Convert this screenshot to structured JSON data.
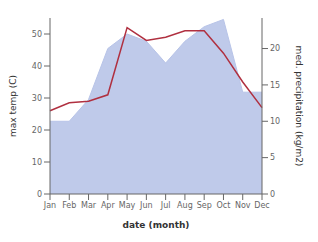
{
  "chart_data": {
    "type": "line",
    "x_label": "date (month)",
    "y_label": "max temp (C)",
    "y2_label": "med. precipitation (kg/m2)",
    "categories": [
      "Jan",
      "Feb",
      "Mar",
      "Apr",
      "May",
      "Jun",
      "Jul",
      "Aug",
      "Sep",
      "Oct",
      "Nov",
      "Dec"
    ],
    "series": [
      {
        "type": "area",
        "color": "#b8c4e8",
        "axis": "y2",
        "values": [
          10,
          10,
          13,
          20,
          22,
          21,
          18,
          21,
          23,
          24,
          14,
          14
        ]
      },
      {
        "type": "line",
        "color": "#b03040",
        "values": [
          26,
          28.5,
          29,
          31,
          52,
          48,
          49,
          51,
          51,
          44,
          35,
          27
        ]
      }
    ],
    "ylim": [
      0,
      55
    ],
    "yticks": [
      0,
      10,
      20,
      30,
      40,
      50
    ],
    "y2lim": [
      0,
      24.2
    ],
    "y2ticks": [
      0,
      5,
      10,
      15,
      20
    ],
    "grid": false
  }
}
